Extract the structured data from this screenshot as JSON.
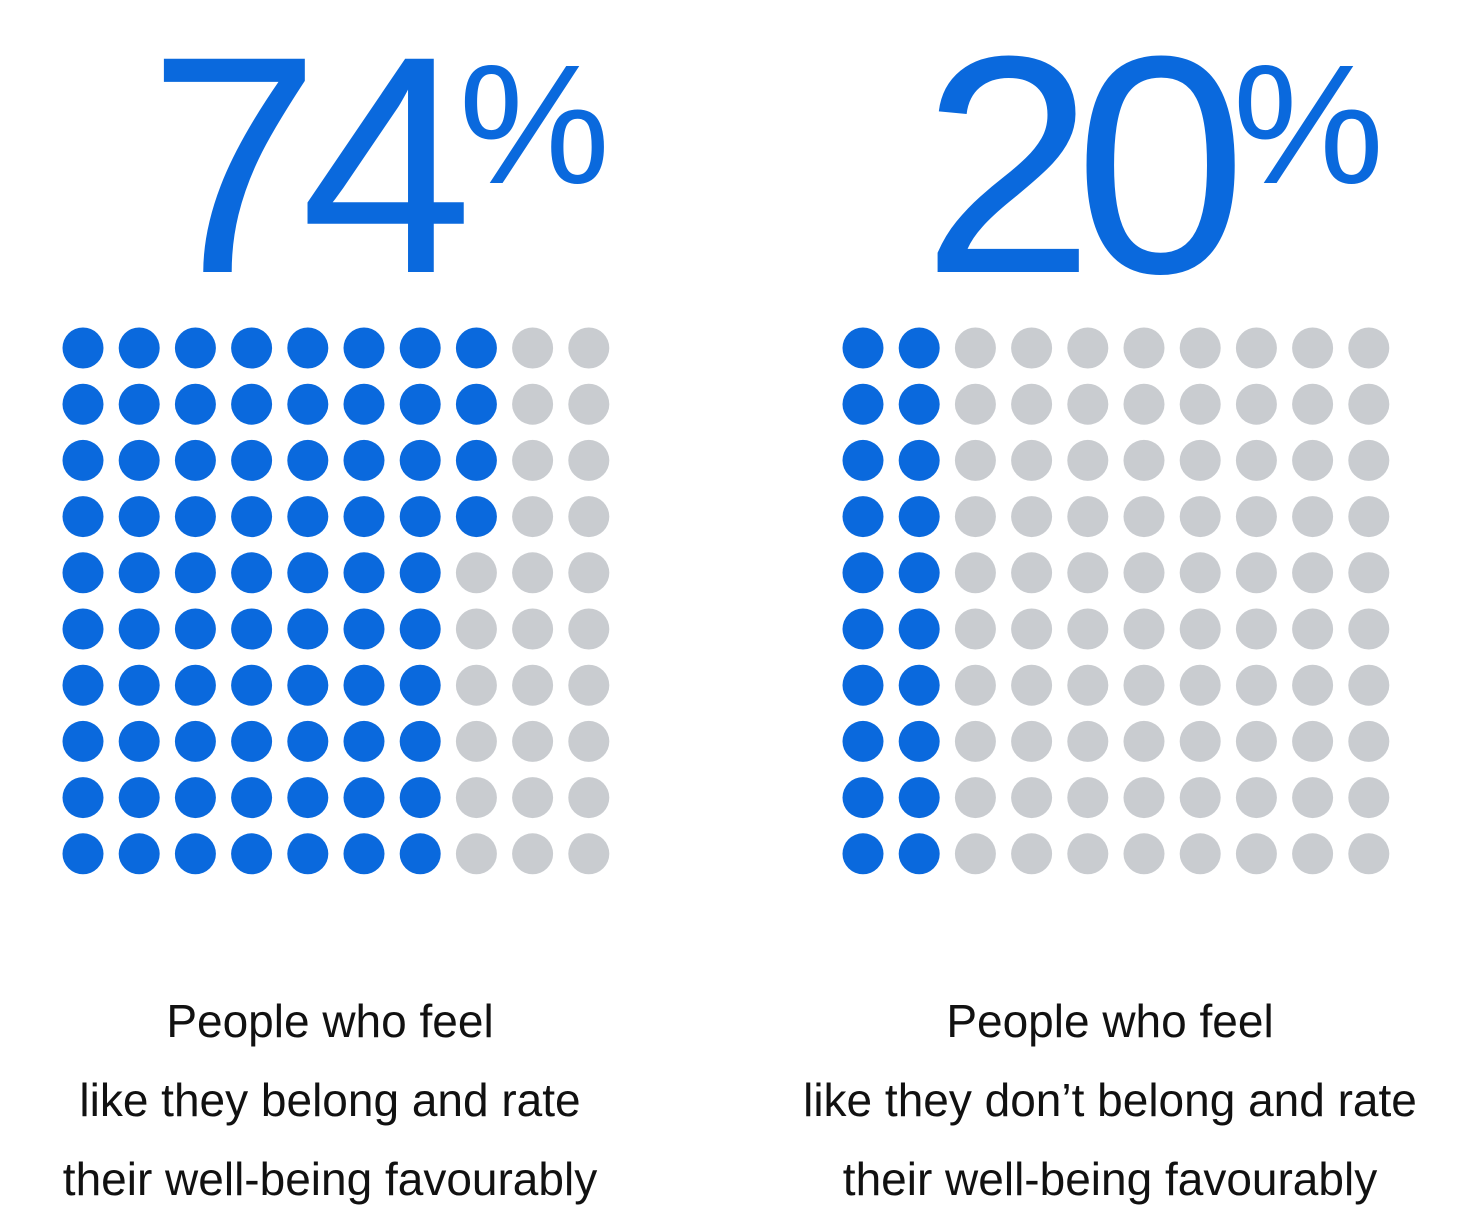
{
  "colors": {
    "filled": "#0a69dd",
    "empty": "#c9ccd0",
    "text": "#111111"
  },
  "chart_data": [
    {
      "type": "waffle",
      "value": 74,
      "total": 100,
      "grid": {
        "rows": 10,
        "cols": 10
      },
      "value_label": "74",
      "unit_label": "%",
      "caption": [
        "People who feel",
        "like they belong and rate",
        "their well-being favourably"
      ]
    },
    {
      "type": "waffle",
      "value": 20,
      "total": 100,
      "grid": {
        "rows": 10,
        "cols": 10
      },
      "value_label": "20",
      "unit_label": "%",
      "caption": [
        "People who feel",
        "like they don’t belong and rate",
        "their well-being favourably"
      ]
    }
  ]
}
